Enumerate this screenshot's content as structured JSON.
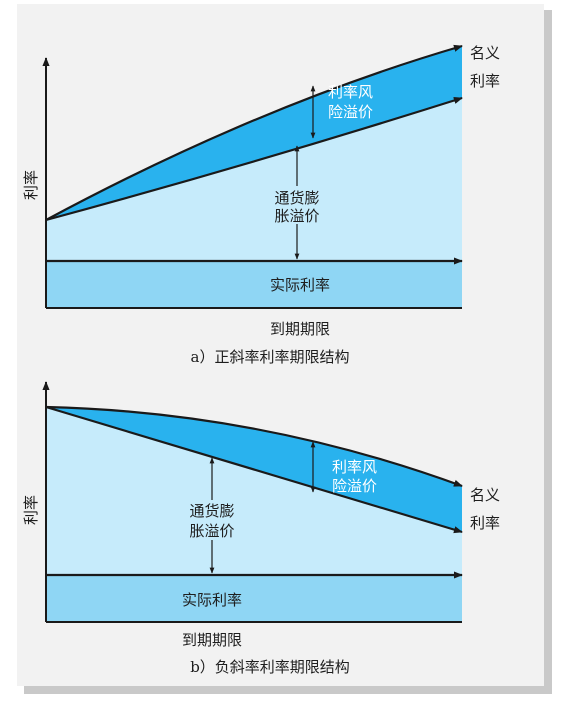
{
  "diagram_a": {
    "y_axis_label": "利率",
    "x_axis_label": "到期期限",
    "nominal_rate_label_1": "名义",
    "nominal_rate_label_2": "利率",
    "risk_premium_label_1": "利率风",
    "risk_premium_label_2": "险溢价",
    "inflation_premium_label_1": "通货膨",
    "inflation_premium_label_2": "胀溢价",
    "real_rate_label": "实际利率",
    "caption": "a）正斜率利率期限结构"
  },
  "diagram_b": {
    "y_axis_label": "利率",
    "x_axis_label": "到期期限",
    "nominal_rate_label_1": "名义",
    "nominal_rate_label_2": "利率",
    "risk_premium_label_1": "利率风",
    "risk_premium_label_2": "险溢价",
    "inflation_premium_label_1": "通货膨",
    "inflation_premium_label_2": "胀溢价",
    "real_rate_label": "实际利率",
    "caption": "b）负斜率利率期限结构"
  },
  "colors": {
    "light_fill": "#c6ebfb",
    "real_rate_fill": "#8fd6f4",
    "risk_premium_fill": "#29b2ee",
    "line": "#1a1a1a"
  }
}
